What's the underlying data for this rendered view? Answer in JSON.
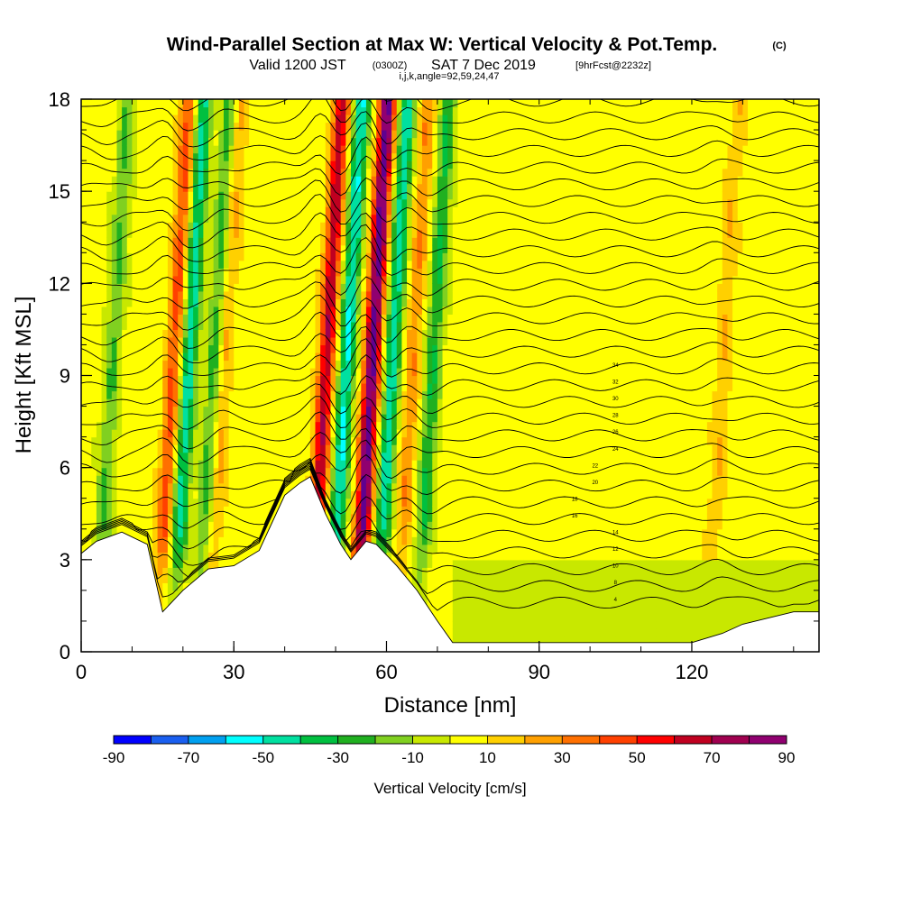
{
  "chart_data": {
    "type": "heatmap",
    "title": "Wind-Parallel Section at Max W: Vertical Velocity & Pot.Temp.",
    "title_mark": "(C)",
    "subtitle_prefix": "Valid 1200 JST",
    "subtitle_utc": "(0300Z)",
    "subtitle_date": "SAT 7 Dec 2019",
    "subtitle_fcst": "[9hrFcst@2232z]",
    "subtitle_indices": "i,j,k,angle=92,59,24,47",
    "xlabel": "Distance [nm]",
    "ylabel": "Height [Kft MSL]",
    "xlim": [
      0,
      145
    ],
    "ylim": [
      0,
      18
    ],
    "x_ticks": [
      0,
      30,
      60,
      90,
      120
    ],
    "x_tick_labels": [
      "0",
      "30",
      "60",
      "90",
      "120"
    ],
    "y_ticks": [
      0,
      3,
      6,
      9,
      12,
      15,
      18
    ],
    "y_tick_labels": [
      "0",
      "3",
      "6",
      "9",
      "12",
      "15",
      "18"
    ],
    "colorbar": {
      "label": "Vertical Velocity [cm/s]",
      "levels": [
        -90,
        -80,
        -70,
        -60,
        -50,
        -40,
        -30,
        -20,
        -10,
        0,
        10,
        20,
        30,
        40,
        50,
        60,
        70,
        80,
        90
      ],
      "tick_labels": [
        "-90",
        "-70",
        "-50",
        "-30",
        "-10",
        "10",
        "30",
        "50",
        "70",
        "90"
      ],
      "colors": [
        "#0000ff",
        "#1a5ff0",
        "#00a0f0",
        "#00ffff",
        "#00e0a0",
        "#00c040",
        "#20b020",
        "#80d020",
        "#c8e800",
        "#ffff00",
        "#ffd000",
        "#ffa000",
        "#ff7000",
        "#ff4000",
        "#ff0000",
        "#c00020",
        "#a00050",
        "#900070",
        "#600090"
      ]
    },
    "updrafts": [
      {
        "x": 17,
        "strength": 40
      },
      {
        "x": 27,
        "strength": 20
      },
      {
        "x": 47,
        "strength": 65
      },
      {
        "x": 56,
        "strength": 90
      },
      {
        "x": 64,
        "strength": 25
      },
      {
        "x": 125,
        "strength": 15
      }
    ],
    "downdrafts": [
      {
        "x": 20,
        "strength": -50
      },
      {
        "x": 25,
        "strength": -30
      },
      {
        "x": 51,
        "strength": -55
      },
      {
        "x": 60,
        "strength": -50
      },
      {
        "x": 68,
        "strength": -35
      },
      {
        "x": 5,
        "strength": -25
      }
    ],
    "terrain": [
      {
        "x": 0,
        "h": 3.2
      },
      {
        "x": 3,
        "h": 3.6
      },
      {
        "x": 8,
        "h": 3.9
      },
      {
        "x": 13,
        "h": 3.5
      },
      {
        "x": 16,
        "h": 1.3
      },
      {
        "x": 20,
        "h": 2.0
      },
      {
        "x": 25,
        "h": 2.7
      },
      {
        "x": 30,
        "h": 2.8
      },
      {
        "x": 35,
        "h": 3.3
      },
      {
        "x": 40,
        "h": 5.1
      },
      {
        "x": 43,
        "h": 5.5
      },
      {
        "x": 45,
        "h": 5.7
      },
      {
        "x": 48,
        "h": 4.5
      },
      {
        "x": 51,
        "h": 3.5
      },
      {
        "x": 53,
        "h": 3.0
      },
      {
        "x": 56,
        "h": 3.6
      },
      {
        "x": 58,
        "h": 3.5
      },
      {
        "x": 62,
        "h": 2.8
      },
      {
        "x": 66,
        "h": 2.0
      },
      {
        "x": 70,
        "h": 1.0
      },
      {
        "x": 73,
        "h": 0.3
      },
      {
        "x": 120,
        "h": 0.3
      },
      {
        "x": 126,
        "h": 0.6
      },
      {
        "x": 130,
        "h": 0.9
      },
      {
        "x": 140,
        "h": 1.3
      },
      {
        "x": 145,
        "h": 1.3
      }
    ],
    "theta_contour_levels": [
      4,
      6,
      8,
      10,
      12,
      14,
      16,
      18,
      20,
      22,
      24,
      26,
      28,
      30,
      32,
      34,
      36,
      38,
      40,
      42,
      44,
      46,
      48,
      50,
      52,
      54,
      56,
      58,
      60,
      62,
      64
    ],
    "theta_label_series": [
      {
        "x": 105,
        "labels": [
          "4",
          "8",
          "10",
          "12",
          "14"
        ]
      },
      {
        "x": 97,
        "labels": [
          "16",
          "18"
        ]
      },
      {
        "x": 101,
        "labels": [
          "20",
          "22"
        ]
      },
      {
        "x": 105,
        "labels": [
          "24",
          "26",
          "28",
          "30",
          "32",
          "34"
        ]
      }
    ]
  }
}
